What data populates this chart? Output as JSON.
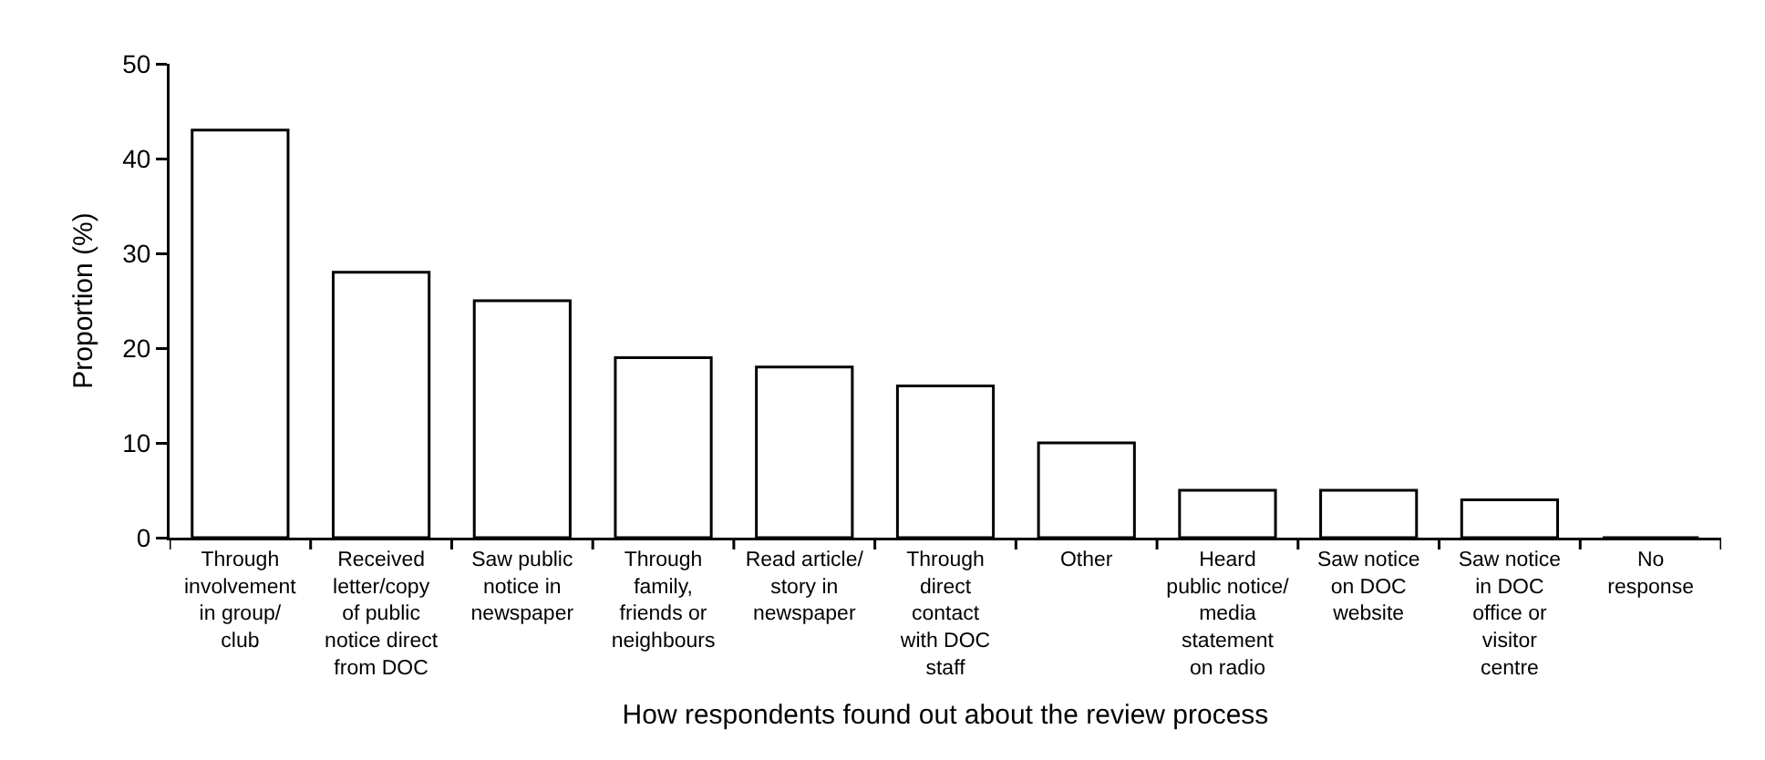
{
  "chart_data": {
    "type": "bar",
    "xlabel": "How respondents found out about the review process",
    "ylabel": "Proportion (%)",
    "categories": [
      "Through\ninvolvement\nin group/\nclub",
      "Received\nletter/copy\nof public\nnotice direct\nfrom DOC",
      "Saw public\nnotice in\nnewspaper",
      "Through\nfamily,\nfriends or\nneighbours",
      "Read article/\nstory in\nnewspaper",
      "Through\ndirect\ncontact\nwith DOC\nstaff",
      "Other",
      "Heard\npublic notice/\nmedia\nstatement\non radio",
      "Saw notice\non DOC\nwebsite",
      "Saw notice\nin DOC\noffice or\nvisitor\ncentre",
      "No\nresponse"
    ],
    "values": [
      43,
      28,
      25,
      19,
      18,
      16,
      10,
      5,
      5,
      4,
      0
    ],
    "color": "#ffffff",
    "ylim": [
      0,
      50
    ],
    "yticks": [
      0,
      10,
      20,
      30,
      40,
      50
    ],
    "grid": false
  }
}
